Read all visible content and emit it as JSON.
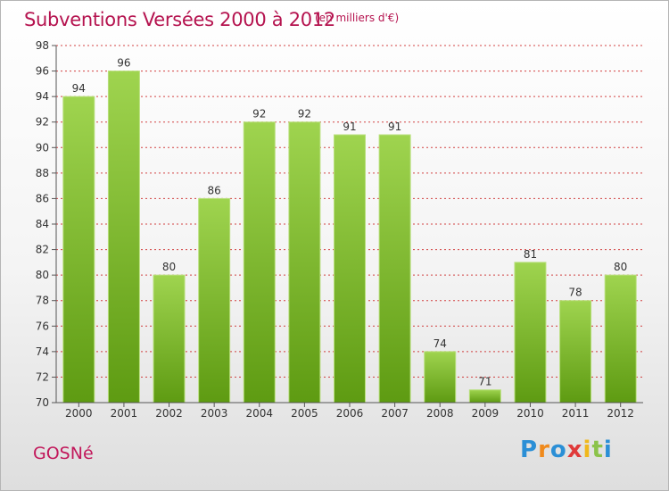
{
  "header": {
    "title": "Subventions Versées 2000 à 2012",
    "unit": "(en milliers d'€)"
  },
  "footer": {
    "city": "GOSNé",
    "brand_letters": [
      {
        "ch": "P",
        "color": "#2b8fd6"
      },
      {
        "ch": "r",
        "color": "#f08a1c"
      },
      {
        "ch": "o",
        "color": "#2b8fd6"
      },
      {
        "ch": "x",
        "color": "#e03a3a"
      },
      {
        "ch": "i",
        "color": "#f0b81c"
      },
      {
        "ch": "t",
        "color": "#8bc34a"
      },
      {
        "ch": "i",
        "color": "#2b8fd6"
      }
    ]
  },
  "chart_data": {
    "type": "bar",
    "categories": [
      "2000",
      "2001",
      "2002",
      "2003",
      "2004",
      "2005",
      "2006",
      "2007",
      "2008",
      "2009",
      "2010",
      "2011",
      "2012"
    ],
    "values": [
      94,
      96,
      80,
      86,
      92,
      92,
      91,
      91,
      74,
      71,
      81,
      78,
      80
    ],
    "title": "Subventions Versées 2000 à 2012",
    "ylim": [
      70,
      98
    ],
    "yticks": [
      70,
      72,
      74,
      76,
      78,
      80,
      82,
      84,
      86,
      88,
      90,
      92,
      94,
      96,
      98
    ],
    "grid": true,
    "bar_color": "#8cc63f",
    "grid_color": "#cc2222"
  }
}
